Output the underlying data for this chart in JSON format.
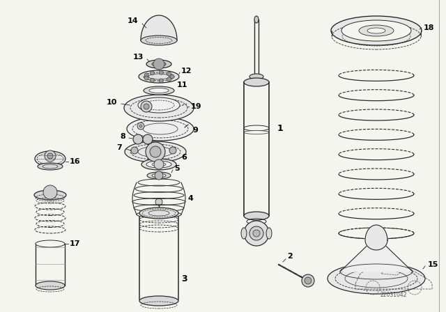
{
  "background_color": "#f5f5f0",
  "line_color": "#2a2a2a",
  "label_color": "#000000",
  "diagram_code": "22031042"
}
